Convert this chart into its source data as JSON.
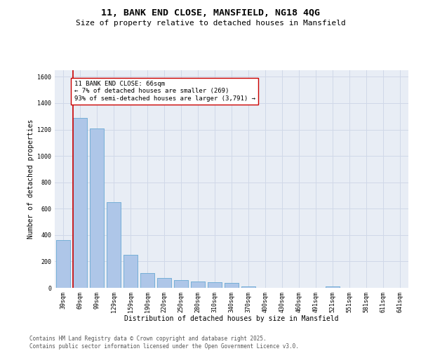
{
  "title": "11, BANK END CLOSE, MANSFIELD, NG18 4QG",
  "subtitle": "Size of property relative to detached houses in Mansfield",
  "xlabel": "Distribution of detached houses by size in Mansfield",
  "ylabel": "Number of detached properties",
  "categories": [
    "39sqm",
    "69sqm",
    "99sqm",
    "129sqm",
    "159sqm",
    "190sqm",
    "220sqm",
    "250sqm",
    "280sqm",
    "310sqm",
    "340sqm",
    "370sqm",
    "400sqm",
    "430sqm",
    "460sqm",
    "491sqm",
    "521sqm",
    "551sqm",
    "581sqm",
    "611sqm",
    "641sqm"
  ],
  "values": [
    360,
    1290,
    1210,
    650,
    250,
    110,
    75,
    60,
    50,
    40,
    35,
    10,
    0,
    0,
    0,
    0,
    10,
    0,
    0,
    0,
    0
  ],
  "bar_color": "#aec6e8",
  "bar_edge_color": "#6aaad4",
  "vline_color": "#cc0000",
  "annotation_text": "11 BANK END CLOSE: 66sqm\n← 7% of detached houses are smaller (269)\n93% of semi-detached houses are larger (3,791) →",
  "annotation_box_color": "#ffffff",
  "annotation_box_edge": "#cc0000",
  "ylim": [
    0,
    1650
  ],
  "yticks": [
    0,
    200,
    400,
    600,
    800,
    1000,
    1200,
    1400,
    1600
  ],
  "grid_color": "#d0d8e8",
  "background_color": "#e8edf5",
  "footer_text": "Contains HM Land Registry data © Crown copyright and database right 2025.\nContains public sector information licensed under the Open Government Licence v3.0.",
  "title_fontsize": 9.5,
  "subtitle_fontsize": 8,
  "xlabel_fontsize": 7,
  "ylabel_fontsize": 7,
  "tick_fontsize": 6,
  "annotation_fontsize": 6.5,
  "footer_fontsize": 5.5
}
